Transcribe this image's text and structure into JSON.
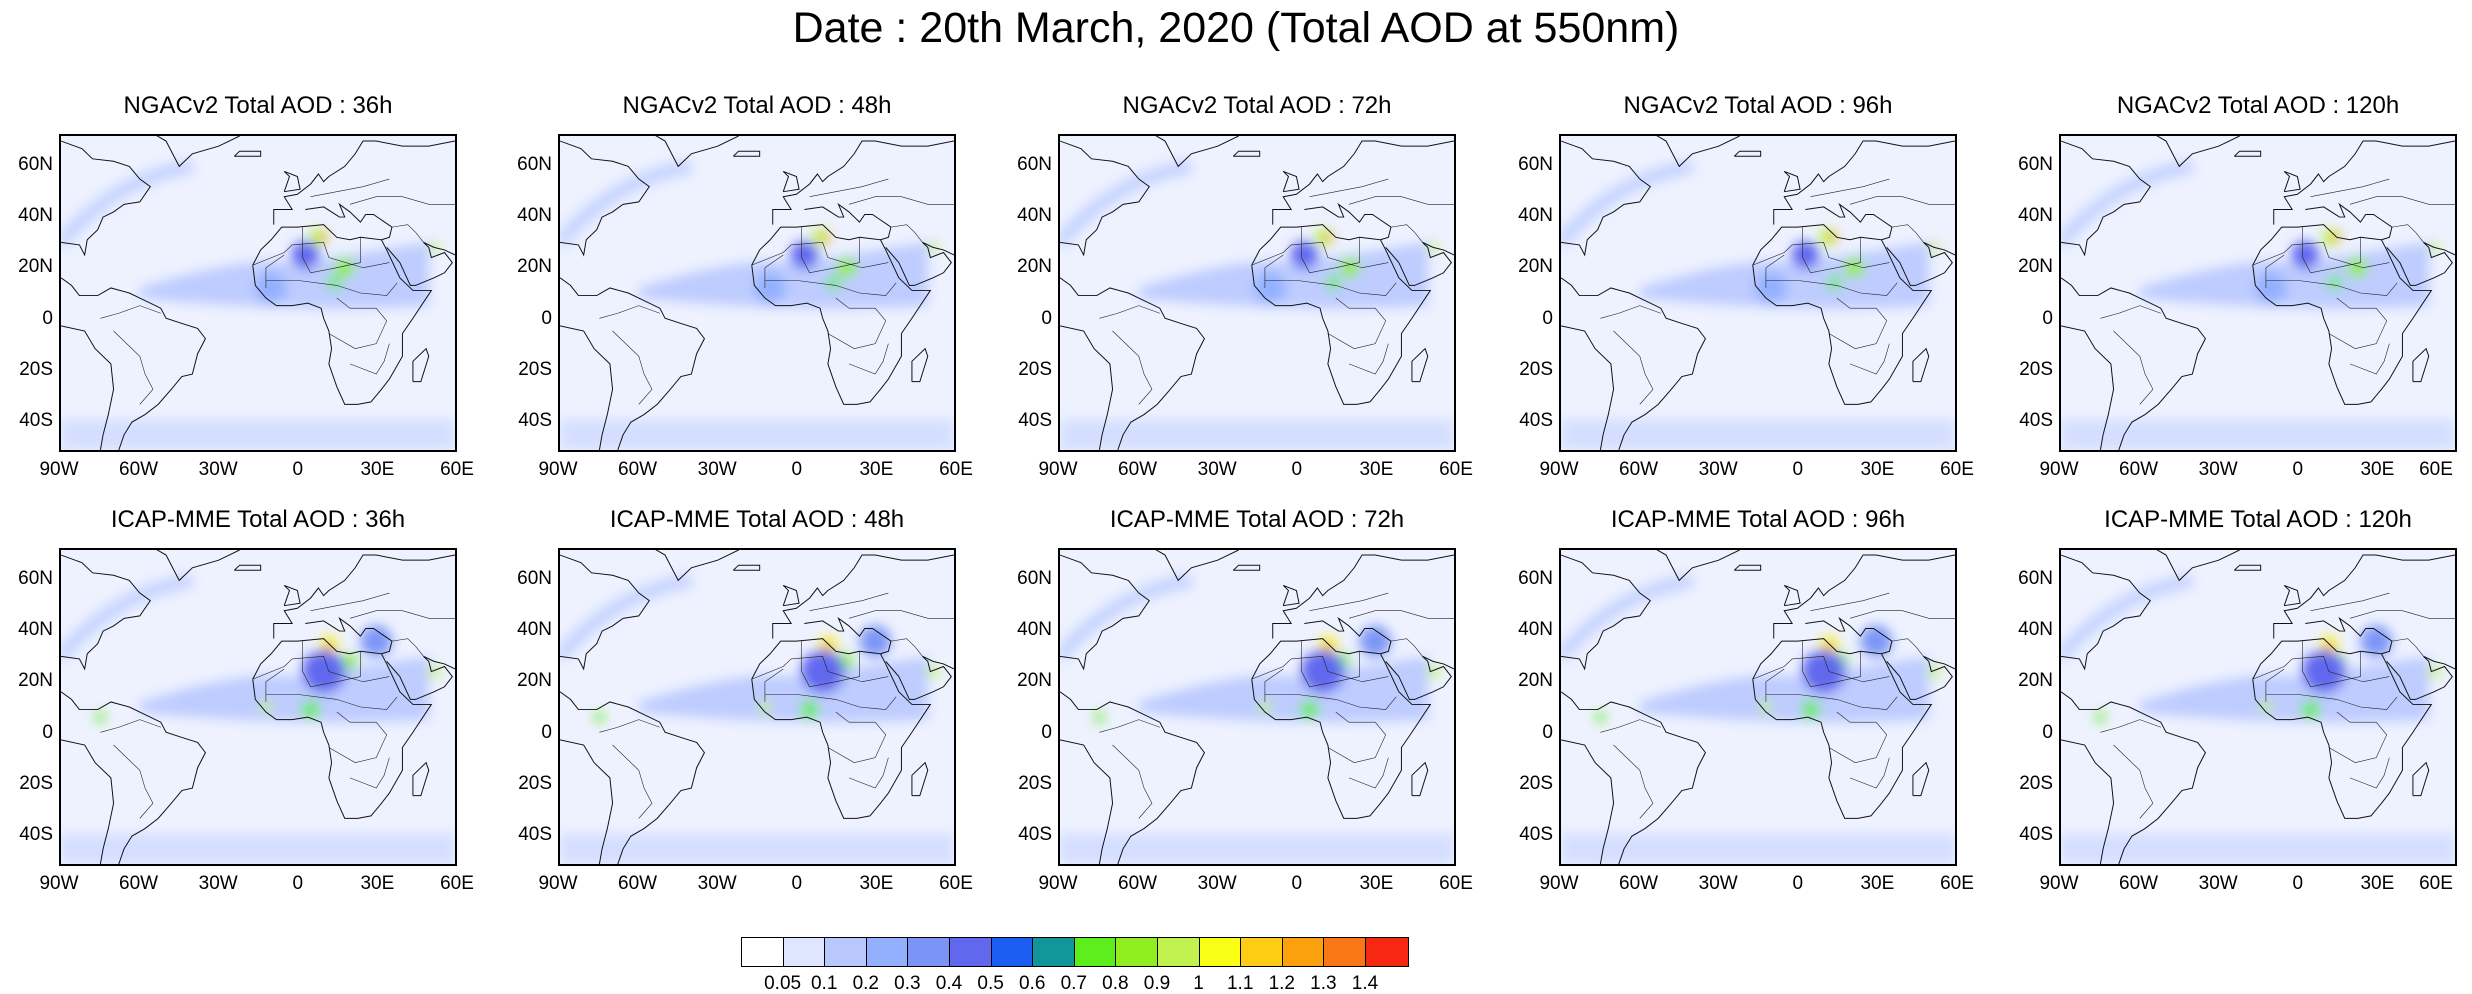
{
  "title": "Date : 20th March, 2020 (Total AOD at 550nm)",
  "panels": [
    {
      "title": "NGACv2 Total AOD : 36h"
    },
    {
      "title": "NGACv2 Total AOD : 48h"
    },
    {
      "title": "NGACv2 Total AOD : 72h"
    },
    {
      "title": "NGACv2 Total AOD : 96h"
    },
    {
      "title": "NGACv2 Total AOD : 120h"
    },
    {
      "title": "ICAP-MME Total AOD : 36h"
    },
    {
      "title": "ICAP-MME Total AOD : 48h"
    },
    {
      "title": "ICAP-MME Total AOD : 72h"
    },
    {
      "title": "ICAP-MME Total AOD : 96h"
    },
    {
      "title": "ICAP-MME Total AOD : 120h"
    }
  ],
  "lat_ticks": [
    "60N",
    "40N",
    "20N",
    "0",
    "20S",
    "40S"
  ],
  "lon_ticks": [
    "90W",
    "60W",
    "30W",
    "0",
    "30E",
    "60E"
  ],
  "colorbar": {
    "colors": [
      "#ffffff",
      "#dfe6ff",
      "#b8c8ff",
      "#93b0ff",
      "#7b95f6",
      "#6168ee",
      "#1a5ff2",
      "#12969b",
      "#5cee1d",
      "#8fee1f",
      "#c1f24f",
      "#fbff15",
      "#fccd14",
      "#fba10e",
      "#f97715",
      "#f72812"
    ],
    "labels": [
      "0.05",
      "0.1",
      "0.2",
      "0.3",
      "0.4",
      "0.5",
      "0.6",
      "0.7",
      "0.8",
      "0.9",
      "1",
      "1.1",
      "1.2",
      "1.3",
      "1.4"
    ]
  }
}
